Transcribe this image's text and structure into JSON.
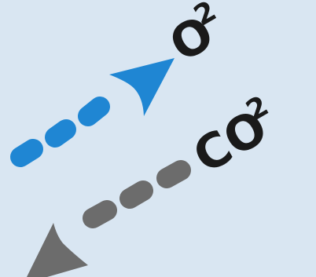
{
  "colors": {
    "background": "#d9e6f2",
    "oxygen_arrow": "#1f86d3",
    "co2_arrow": "#6c6c6c",
    "label_text": "#1a1a1a"
  },
  "oxygen": {
    "label_main": "O",
    "label_sub": "2",
    "arrow_direction": "up-right",
    "arrow_style": "dashed-dots"
  },
  "carbon_dioxide": {
    "label_main": "CO",
    "label_sub": "2",
    "arrow_direction": "down-left",
    "arrow_style": "dashed-dots"
  }
}
